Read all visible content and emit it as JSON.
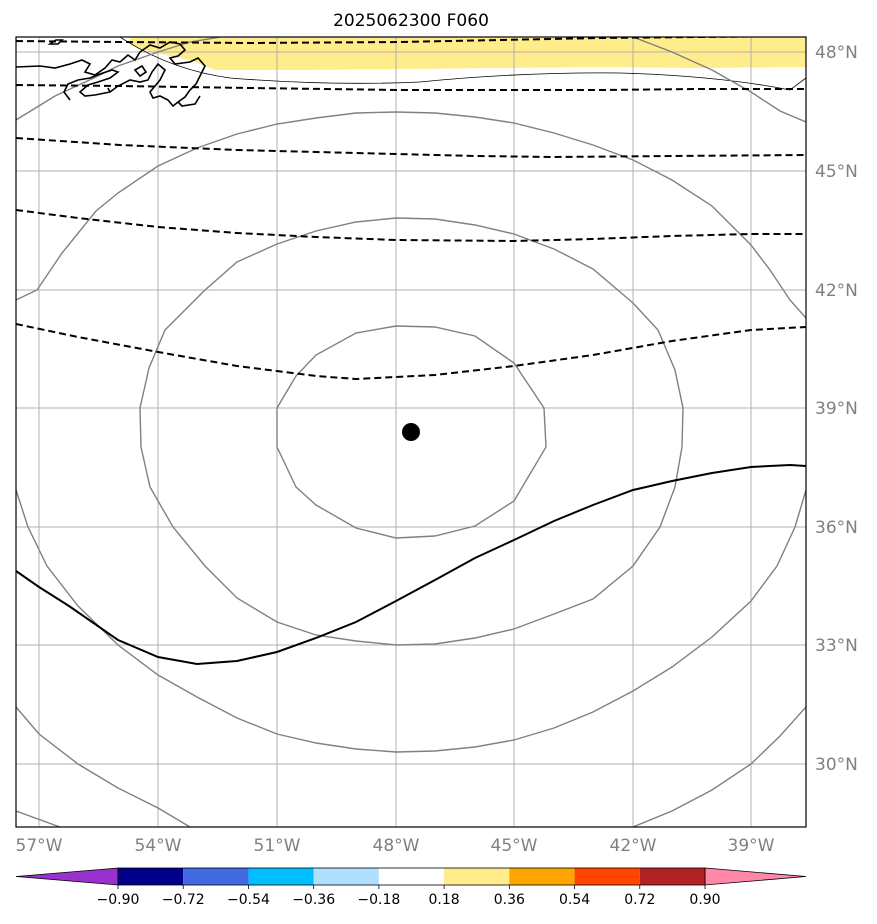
{
  "title": "2025062300 F060",
  "map": {
    "lon_range": [
      -57.5,
      -37.5
    ],
    "lat_range": [
      28.0,
      48.3
    ],
    "center_marker": {
      "lon": -47.6,
      "lat": 38.4
    }
  },
  "longitude_labels": [
    "57°W",
    "54°W",
    "51°W",
    "48°W",
    "45°W",
    "42°W",
    "39°W"
  ],
  "latitude_labels": [
    "48°N",
    "45°N",
    "42°N",
    "39°N",
    "36°N",
    "33°N",
    "30°N"
  ],
  "colorbar": {
    "tick_labels": [
      "−0.90",
      "−0.72",
      "−0.54",
      "−0.36",
      "−0.18",
      "0.18",
      "0.36",
      "0.54",
      "0.72",
      "0.90"
    ],
    "colors": [
      "#9932cc",
      "#00008b",
      "#4169e1",
      "#00bfff",
      "#b0e0ff",
      "#ffffff",
      "#ffec8b",
      "#ffa500",
      "#ff4500",
      "#b22222",
      "#ff88aa"
    ]
  },
  "colors": {
    "grid": "#b0b0b0",
    "contour_gray": "#808080",
    "contour_black": "#000000",
    "shade_yellow": "#ffec8b"
  }
}
